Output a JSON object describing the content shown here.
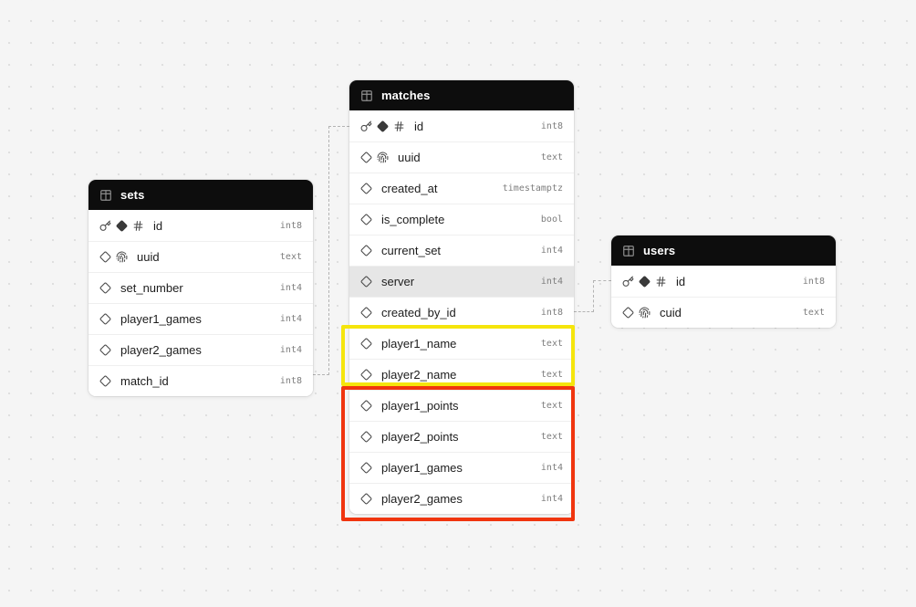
{
  "diagram": {
    "tables": [
      {
        "id": "sets",
        "title": "sets",
        "columns": [
          {
            "name": "id",
            "type": "int8",
            "icons": [
              "key-icon",
              "diamond-filled-icon",
              "hash-icon"
            ],
            "highlighted": false
          },
          {
            "name": "uuid",
            "type": "text",
            "icons": [
              "diamond-outline-icon",
              "fingerprint-icon"
            ],
            "highlighted": false
          },
          {
            "name": "set_number",
            "type": "int4",
            "icons": [
              "diamond-outline-icon"
            ],
            "highlighted": false
          },
          {
            "name": "player1_games",
            "type": "int4",
            "icons": [
              "diamond-outline-icon"
            ],
            "highlighted": false
          },
          {
            "name": "player2_games",
            "type": "int4",
            "icons": [
              "diamond-outline-icon"
            ],
            "highlighted": false
          },
          {
            "name": "match_id",
            "type": "int8",
            "icons": [
              "diamond-outline-icon"
            ],
            "highlighted": false
          }
        ]
      },
      {
        "id": "matches",
        "title": "matches",
        "columns": [
          {
            "name": "id",
            "type": "int8",
            "icons": [
              "key-icon",
              "diamond-filled-icon",
              "hash-icon"
            ],
            "highlighted": false
          },
          {
            "name": "uuid",
            "type": "text",
            "icons": [
              "diamond-outline-icon",
              "fingerprint-icon"
            ],
            "highlighted": false
          },
          {
            "name": "created_at",
            "type": "timestamptz",
            "icons": [
              "diamond-outline-icon"
            ],
            "highlighted": false
          },
          {
            "name": "is_complete",
            "type": "bool",
            "icons": [
              "diamond-outline-icon"
            ],
            "highlighted": false
          },
          {
            "name": "current_set",
            "type": "int4",
            "icons": [
              "diamond-outline-icon"
            ],
            "highlighted": false
          },
          {
            "name": "server",
            "type": "int4",
            "icons": [
              "diamond-outline-icon"
            ],
            "highlighted": true
          },
          {
            "name": "created_by_id",
            "type": "int8",
            "icons": [
              "diamond-outline-icon"
            ],
            "highlighted": false
          },
          {
            "name": "player1_name",
            "type": "text",
            "icons": [
              "diamond-outline-icon"
            ],
            "highlighted": false
          },
          {
            "name": "player2_name",
            "type": "text",
            "icons": [
              "diamond-outline-icon"
            ],
            "highlighted": false
          },
          {
            "name": "player1_points",
            "type": "text",
            "icons": [
              "diamond-outline-icon"
            ],
            "highlighted": false
          },
          {
            "name": "player2_points",
            "type": "text",
            "icons": [
              "diamond-outline-icon"
            ],
            "highlighted": false
          },
          {
            "name": "player1_games",
            "type": "int4",
            "icons": [
              "diamond-outline-icon"
            ],
            "highlighted": false
          },
          {
            "name": "player2_games",
            "type": "int4",
            "icons": [
              "diamond-outline-icon"
            ],
            "highlighted": false
          }
        ]
      },
      {
        "id": "users",
        "title": "users",
        "columns": [
          {
            "name": "id",
            "type": "int8",
            "icons": [
              "key-icon",
              "diamond-filled-icon",
              "hash-icon"
            ],
            "highlighted": false
          },
          {
            "name": "cuid",
            "type": "text",
            "icons": [
              "diamond-outline-icon",
              "fingerprint-icon"
            ],
            "highlighted": false
          }
        ]
      }
    ],
    "relations": [
      {
        "from": "sets.match_id",
        "to": "matches.id"
      },
      {
        "from": "matches.created_by_id",
        "to": "users.id"
      }
    ],
    "annotations": [
      {
        "name": "yellow-highlight-box",
        "color": "#f5e50c",
        "rows": [
          "player1_name",
          "player2_name"
        ]
      },
      {
        "name": "red-highlight-box",
        "color": "#f0350f",
        "rows": [
          "player1_points",
          "player2_points",
          "player1_games",
          "player2_games"
        ]
      }
    ],
    "colors": {
      "canvas_bg": "#f5f5f5",
      "header_bg": "#0d0d0d",
      "header_text": "#ffffff",
      "row_bg": "#ffffff",
      "row_highlight_bg": "#e6e6e6",
      "connector": "#b3b3b3"
    }
  }
}
